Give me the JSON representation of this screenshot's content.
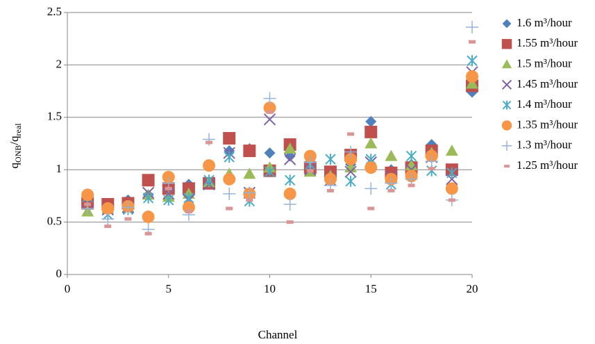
{
  "chart_data": {
    "type": "scatter",
    "xlabel": "Channel",
    "ylabel": [
      "q",
      "ONB",
      "/q",
      "real"
    ],
    "xlim": [
      0,
      20
    ],
    "xticks": [
      0,
      5,
      10,
      15,
      20
    ],
    "ylim": [
      0,
      2.5
    ],
    "yticks": [
      0,
      0.5,
      1,
      1.5,
      2,
      2.5
    ],
    "grid": true,
    "legend": "right",
    "x": [
      1,
      2,
      3,
      4,
      5,
      6,
      7,
      8,
      9,
      10,
      11,
      12,
      13,
      14,
      15,
      16,
      17,
      18,
      19,
      20
    ],
    "series": [
      {
        "name": "1.6 m³/hour",
        "color": "#4f81bd",
        "marker": "diamond",
        "values": [
          0.72,
          0.66,
          0.71,
          0.76,
          0.8,
          0.86,
          0.88,
          1.18,
          1.2,
          1.16,
          1.13,
          1.05,
          0.98,
          1.05,
          1.46,
          1.0,
          1.05,
          1.24,
          1.0,
          1.74
        ]
      },
      {
        "name": "1.55 m³/hour",
        "color": "#c0504d",
        "marker": "square",
        "values": [
          0.68,
          0.67,
          0.68,
          0.9,
          0.82,
          0.82,
          0.87,
          1.3,
          1.18,
          0.99,
          1.24,
          1.02,
          0.98,
          1.14,
          1.36,
          0.97,
          1.02,
          1.18,
          1.0,
          1.8
        ]
      },
      {
        "name": "1.5 m³/hour",
        "color": "#9bbb59",
        "marker": "triangle",
        "values": [
          0.6,
          0.63,
          0.64,
          0.76,
          0.74,
          0.77,
          0.88,
          0.96,
          0.96,
          1.02,
          1.2,
          0.98,
          0.94,
          1.02,
          1.25,
          1.13,
          1.04,
          1.16,
          1.18,
          1.82
        ]
      },
      {
        "name": "1.45 m³/hour",
        "color": "#8064a2",
        "marker": "x",
        "values": [
          0.69,
          0.62,
          0.64,
          0.78,
          0.77,
          0.71,
          0.86,
          1.16,
          0.78,
          1.48,
          1.1,
          1.0,
          0.9,
          0.98,
          1.07,
          0.93,
          1.0,
          1.12,
          0.91,
          1.93
        ]
      },
      {
        "name": "1.4 m³/hour",
        "color": "#4bacc6",
        "marker": "star",
        "values": [
          0.74,
          0.57,
          0.62,
          0.73,
          0.71,
          0.73,
          0.9,
          1.12,
          0.7,
          0.98,
          0.9,
          1.05,
          1.1,
          0.89,
          1.1,
          0.86,
          1.13,
          0.99,
          0.97,
          2.04
        ]
      },
      {
        "name": "1.35 m³/hour",
        "color": "#f79646",
        "marker": "circle",
        "values": [
          0.76,
          0.63,
          0.65,
          0.55,
          0.93,
          0.64,
          1.04,
          0.91,
          0.77,
          1.59,
          0.77,
          1.13,
          0.91,
          1.1,
          1.02,
          0.91,
          0.94,
          1.13,
          0.82,
          1.89
        ]
      },
      {
        "name": "1.3 m³/hour",
        "color": "#95b3d7",
        "marker": "plus",
        "values": [
          0.63,
          0.53,
          0.64,
          0.43,
          0.87,
          0.57,
          1.29,
          0.77,
          0.78,
          1.68,
          0.67,
          1.07,
          0.85,
          1.17,
          0.82,
          0.87,
          0.91,
          1.08,
          0.71,
          2.36
        ]
      },
      {
        "name": "1.25 m³/hour",
        "color": "#d99694",
        "marker": "dash",
        "values": [
          0.67,
          0.46,
          0.53,
          0.39,
          0.82,
          0.6,
          1.26,
          0.63,
          0.71,
          1.55,
          0.5,
          0.99,
          0.8,
          1.34,
          0.63,
          0.8,
          0.85,
          1.01,
          0.71,
          2.22
        ]
      }
    ]
  }
}
